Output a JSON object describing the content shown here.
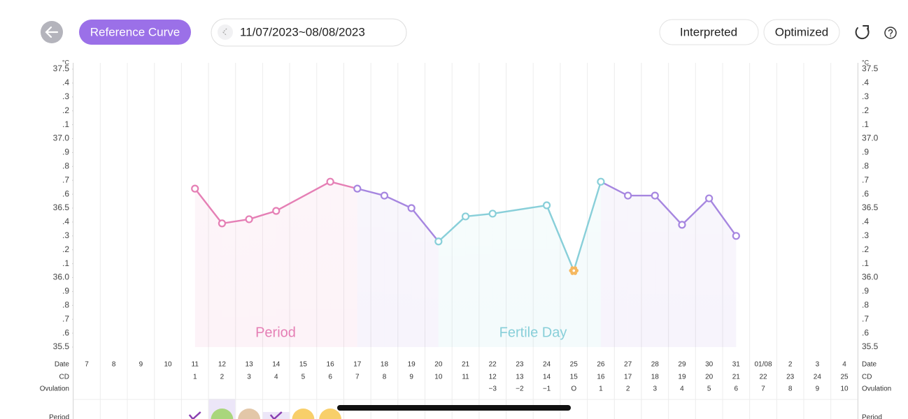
{
  "header": {
    "reference_curve": "Reference Curve",
    "date_range": "11/07/2023~08/08/2023",
    "interpreted": "Interpreted",
    "optimized": "Optimized"
  },
  "chart_data": {
    "type": "line",
    "y_unit": "°C",
    "categories": [
      "7",
      "8",
      "9",
      "10",
      "11",
      "12",
      "13",
      "14",
      "15",
      "16",
      "17",
      "18",
      "19",
      "20",
      "21",
      "22",
      "23",
      "24",
      "25",
      "26",
      "27",
      "28",
      "29",
      "30",
      "31",
      "01/08",
      "2",
      "3",
      "4"
    ],
    "values": [
      null,
      null,
      null,
      null,
      36.64,
      36.39,
      36.42,
      36.48,
      null,
      36.69,
      36.64,
      36.59,
      36.5,
      36.26,
      36.44,
      36.46,
      null,
      36.52,
      36.05,
      36.69,
      36.59,
      36.59,
      36.38,
      36.57,
      36.3,
      null,
      null,
      null,
      null
    ],
    "point_colors": [
      null,
      null,
      null,
      null,
      "#e57fb5",
      "#e57fb5",
      "#e57fb5",
      "#e57fb5",
      null,
      "#e57fb5",
      "#a686e0",
      "#a686e0",
      "#a686e0",
      "#88cfd9",
      "#88cfd9",
      "#88cfd9",
      null,
      "#88cfd9",
      "#f5b860",
      "#88cfd9",
      "#a686e0",
      "#a686e0",
      "#a686e0",
      "#a686e0",
      "#a686e0",
      null,
      null,
      null,
      null
    ],
    "line_colors": [
      null,
      null,
      null,
      null,
      "#e57fb5",
      "#e57fb5",
      "#e57fb5",
      "#e57fb5",
      null,
      "#e57fb5",
      "#a686e0",
      "#a686e0",
      "#a686e0",
      "#88cfd9",
      "#88cfd9",
      "#88cfd9",
      null,
      "#88cfd9",
      "#88cfd9",
      "#a686e0",
      "#a686e0",
      "#a686e0",
      "#a686e0",
      "#a686e0",
      null,
      null,
      null,
      null,
      null
    ],
    "ylim": [
      35.5,
      37.5
    ],
    "yticks": [
      35.5,
      {
        "value": 35.6,
        "label": ".6"
      },
      {
        "value": 35.7,
        "label": ".7"
      },
      {
        "value": 35.8,
        "label": ".8"
      },
      {
        "value": 35.9,
        "label": ".9"
      },
      {
        "value": 36.0,
        "label": "36.0"
      },
      {
        "value": 36.1,
        "label": ".1"
      },
      {
        "value": 36.2,
        "label": ".2"
      },
      {
        "value": 36.3,
        "label": ".3"
      },
      {
        "value": 36.4,
        "label": ".4"
      },
      36.5,
      {
        "value": 36.6,
        "label": ".6"
      },
      {
        "value": 36.7,
        "label": ".7"
      },
      {
        "value": 36.8,
        "label": ".8"
      },
      {
        "value": 36.9,
        "label": ".9"
      },
      {
        "value": 37.0,
        "label": "37.0"
      },
      {
        "value": 37.1,
        "label": ".1"
      },
      {
        "value": 37.2,
        "label": ".2"
      },
      {
        "value": 37.3,
        "label": ".3"
      },
      {
        "value": 37.4,
        "label": ".4"
      },
      37.5
    ],
    "annotations": [
      {
        "text": "Period",
        "color": "#e57fb5"
      },
      {
        "text": "Fertile Day",
        "color": "#88cfd9"
      }
    ],
    "row_labels": {
      "date": "Date",
      "cd": "CD",
      "ovulation": "Ovulation",
      "period": "Period"
    },
    "cd": [
      null,
      null,
      null,
      null,
      1,
      2,
      3,
      4,
      5,
      6,
      7,
      8,
      9,
      10,
      11,
      12,
      13,
      14,
      15,
      16,
      17,
      18,
      19,
      20,
      21,
      22,
      23,
      24,
      25
    ],
    "ovulation": [
      null,
      null,
      null,
      null,
      null,
      null,
      null,
      null,
      null,
      null,
      null,
      null,
      null,
      null,
      null,
      "−3",
      "−2",
      "−1",
      "O",
      1,
      2,
      3,
      4,
      5,
      6,
      7,
      8,
      9,
      10
    ]
  }
}
